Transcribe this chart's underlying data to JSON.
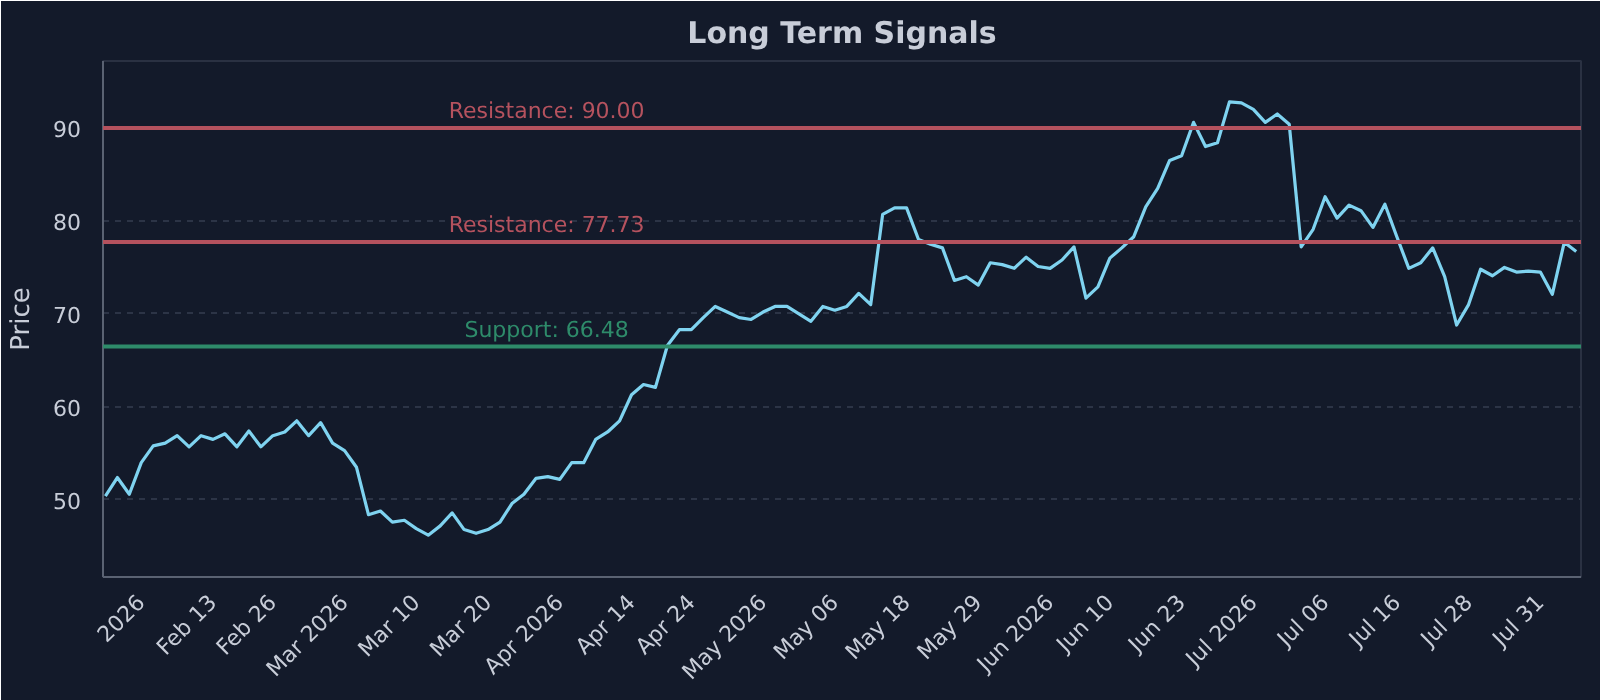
{
  "chart_data": {
    "type": "line",
    "title": "Long Term Signals",
    "ylabel": "Price",
    "categories": [
      null,
      null,
      null,
      "2026",
      null,
      null,
      null,
      null,
      null,
      "Feb 13",
      null,
      null,
      null,
      null,
      "Feb 26",
      null,
      null,
      null,
      null,
      null,
      "Mar 2026",
      null,
      null,
      null,
      null,
      null,
      "Mar 10",
      null,
      null,
      null,
      null,
      null,
      "Mar 20",
      null,
      null,
      null,
      null,
      null,
      "Apr 2026",
      null,
      null,
      null,
      null,
      null,
      "Apr 14",
      null,
      null,
      null,
      null,
      "Apr 24",
      null,
      null,
      null,
      null,
      null,
      "May 2026",
      null,
      null,
      null,
      null,
      null,
      "May 06",
      null,
      null,
      null,
      null,
      null,
      "May 18",
      null,
      null,
      null,
      null,
      null,
      "May 29",
      null,
      null,
      null,
      null,
      null,
      "Jun 2026",
      null,
      null,
      null,
      null,
      "Jun 10",
      null,
      null,
      null,
      null,
      null,
      "Jun 23",
      null,
      null,
      null,
      null,
      null,
      "Jul 2026",
      null,
      null,
      null,
      null,
      null,
      "Jul 06",
      null,
      null,
      null,
      null,
      null,
      "Jul 16",
      null,
      null,
      null,
      null,
      null,
      "Jul 28",
      null,
      null,
      null,
      null,
      null,
      "Jul 31",
      null,
      null,
      null
    ],
    "series": [
      {
        "color": "#7fd3f0",
        "values": [
          50.4,
          52.4,
          50.6,
          54.0,
          55.8,
          56.1,
          56.9,
          55.7,
          56.9,
          56.5,
          57.1,
          55.7,
          57.4,
          55.7,
          56.9,
          57.3,
          58.5,
          56.9,
          58.3,
          56.1,
          55.3,
          53.5,
          48.4,
          48.8,
          47.6,
          47.8,
          46.9,
          46.2,
          47.2,
          48.6,
          46.8,
          46.4,
          46.8,
          47.6,
          49.6,
          50.6,
          52.3,
          52.5,
          52.2,
          54.0,
          54.0,
          56.5,
          57.3,
          58.5,
          61.3,
          62.4,
          62.1,
          66.6,
          68.3,
          68.3,
          69.6,
          70.8,
          70.2,
          69.6,
          69.4,
          70.2,
          70.8,
          70.8,
          70.0,
          69.2,
          70.8,
          70.4,
          70.8,
          72.2,
          71.0,
          80.7,
          81.4,
          81.4,
          78.0,
          77.5,
          77.1,
          73.6,
          74.0,
          73.1,
          75.5,
          75.3,
          74.9,
          76.1,
          75.1,
          74.9,
          75.8,
          77.2,
          71.7,
          72.9,
          76.0,
          77.1,
          78.3,
          81.5,
          83.5,
          86.5,
          87.0,
          90.6,
          88.0,
          88.4,
          92.8,
          92.7,
          92.0,
          90.6,
          91.5,
          90.4,
          77.2,
          79.1,
          82.6,
          80.3,
          81.7,
          81.1,
          79.3,
          81.8,
          78.3,
          74.9,
          75.5,
          77.1,
          74.0,
          68.8,
          71.0,
          74.8,
          74.1,
          75.0,
          74.5,
          74.6,
          74.5,
          72.1,
          77.7,
          76.7
        ]
      }
    ],
    "ylim": [
      41.7,
      97.2
    ],
    "yticks": [
      50,
      60,
      70,
      80,
      90
    ],
    "grid": "y",
    "ref_lines": [
      {
        "axis": "y",
        "value": 90.0,
        "label": "Resistance: 90.00",
        "color": "#b5525e"
      },
      {
        "axis": "y",
        "value": 77.73,
        "label": "Resistance: 77.73",
        "color": "#b5525e"
      },
      {
        "axis": "y",
        "value": 66.48,
        "label": "Support: 66.48",
        "color": "#2e8b6a"
      }
    ]
  }
}
